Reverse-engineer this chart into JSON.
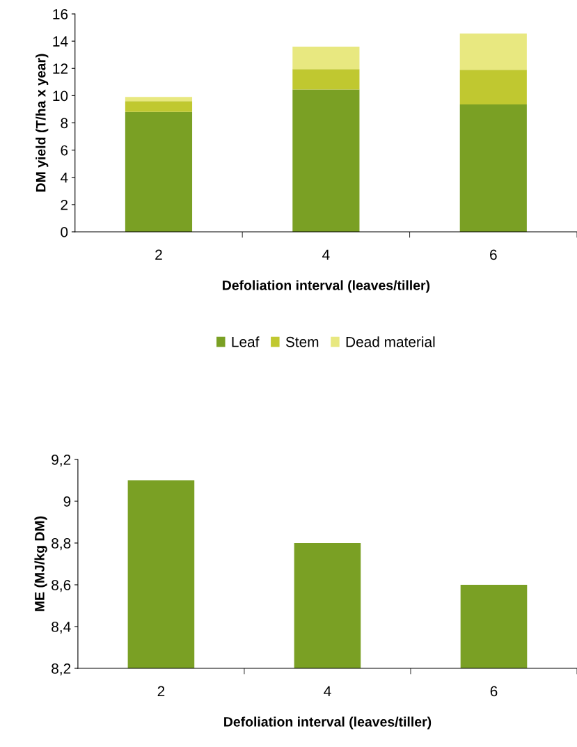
{
  "chart_data": [
    {
      "type": "bar",
      "stacked": true,
      "categories": [
        "2",
        "4",
        "6"
      ],
      "xlabel": "Defoliation interval (leaves/tiller)",
      "ylabel": "DM yield (T/ha x year)",
      "ylim": [
        0,
        16
      ],
      "yticks": [
        0,
        2,
        4,
        6,
        8,
        10,
        12,
        14,
        16
      ],
      "legend": "bottom",
      "series": [
        {
          "name": "Leaf",
          "color": "#7aa024",
          "values": [
            8.8,
            10.45,
            9.35
          ]
        },
        {
          "name": "Stem",
          "color": "#c0c830",
          "values": [
            0.8,
            1.5,
            2.55
          ]
        },
        {
          "name": "Dead material",
          "color": "#e8e880",
          "values": [
            0.3,
            1.65,
            2.65
          ]
        }
      ]
    },
    {
      "type": "bar",
      "categories": [
        "2",
        "4",
        "6"
      ],
      "xlabel": "Defoliation interval (leaves/tiller)",
      "ylabel": "ME (MJ/kg DM)",
      "ylim": [
        8.2,
        9.2
      ],
      "yticks": [
        {
          "value": 8.2,
          "label": "8,2"
        },
        {
          "value": 8.4,
          "label": "8,4"
        },
        {
          "value": 8.6,
          "label": "8,6"
        },
        {
          "value": 8.8,
          "label": "8,8"
        },
        {
          "value": 9,
          "label": "9"
        },
        {
          "value": 9.2,
          "label": "9,2"
        }
      ],
      "series": [
        {
          "color": "#7aa024",
          "values": [
            9.1,
            8.8,
            8.6
          ]
        }
      ]
    }
  ]
}
